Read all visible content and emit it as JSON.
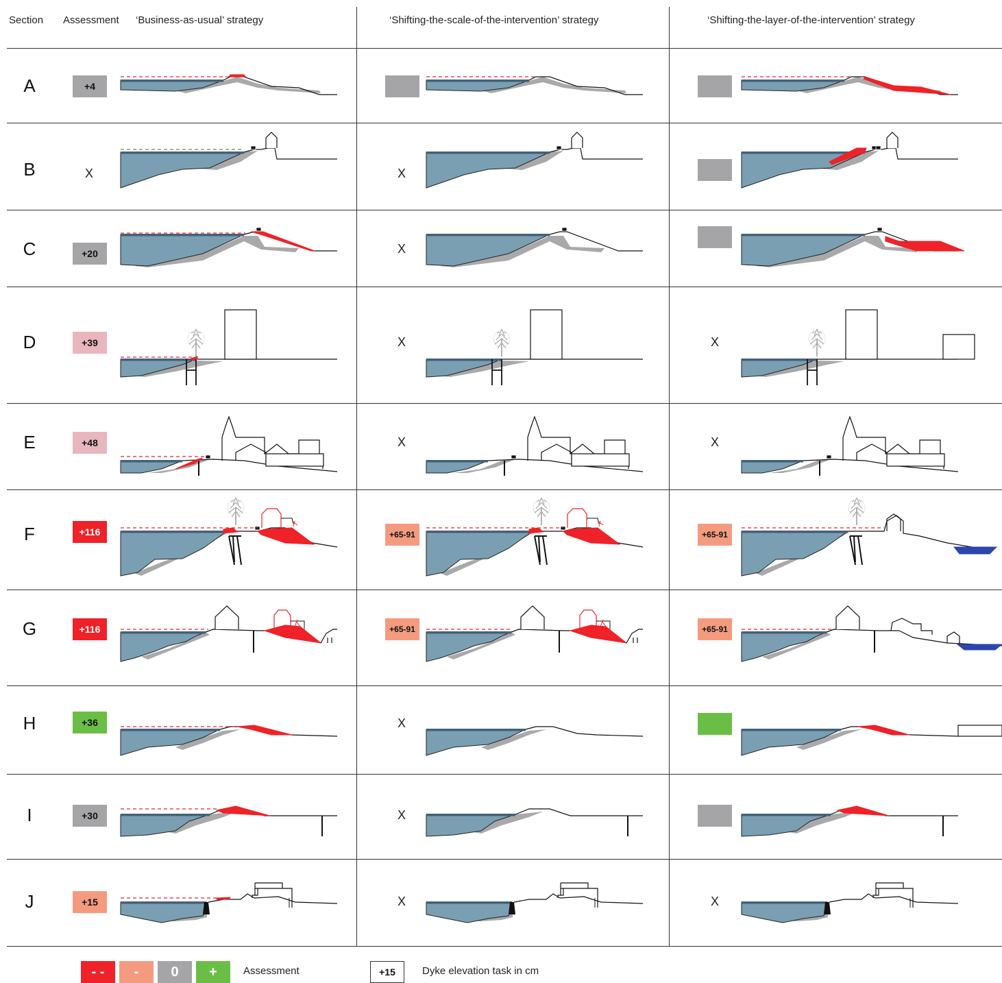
{
  "headers": {
    "section": "Section",
    "assessment": "Assessment",
    "business_as_usual": "‘Business-as-usual’ strategy",
    "shifting_scale": "‘Shifting-the-scale-of-the-intervention’ strategy",
    "shifting_layer": "‘Shifting-the-layer-of-the-intervention’ strategy"
  },
  "colors": {
    "strongly_negative": "#ee2228",
    "negative": "#f49b7f",
    "mildly_negative": "#e9b6bd",
    "neutral": "#a5a5a7",
    "positive": "#6bbe45",
    "water": "#7a9fb2",
    "water_surface": "#43617a",
    "dyke_earth": "#a9a9ab",
    "intervention": "#ee2228",
    "retention": "#2b46ae"
  },
  "rows": [
    {
      "section": "A",
      "cells": [
        {
          "mark": "badge",
          "label": "+4",
          "color": "neutral"
        },
        {
          "mark": "badge",
          "label": "",
          "color": "neutral"
        },
        {
          "mark": "badge",
          "label": "",
          "color": "neutral"
        }
      ]
    },
    {
      "section": "B",
      "cells": [
        {
          "mark": "x",
          "label": "X"
        },
        {
          "mark": "x",
          "label": "X"
        },
        {
          "mark": "badge",
          "label": "",
          "color": "neutral"
        }
      ]
    },
    {
      "section": "C",
      "cells": [
        {
          "mark": "badge",
          "label": "+20",
          "color": "neutral"
        },
        {
          "mark": "x",
          "label": "X"
        },
        {
          "mark": "badge",
          "label": "",
          "color": "neutral"
        }
      ]
    },
    {
      "section": "D",
      "cells": [
        {
          "mark": "badge",
          "label": "+39",
          "color": "mildly_negative"
        },
        {
          "mark": "x",
          "label": "X"
        },
        {
          "mark": "x",
          "label": "X"
        }
      ]
    },
    {
      "section": "E",
      "cells": [
        {
          "mark": "badge",
          "label": "+48",
          "color": "mildly_negative"
        },
        {
          "mark": "x",
          "label": "X"
        },
        {
          "mark": "x",
          "label": "X"
        }
      ]
    },
    {
      "section": "F",
      "cells": [
        {
          "mark": "badge",
          "label": "+116",
          "color": "strongly_negative"
        },
        {
          "mark": "badge",
          "label": "+65-91",
          "color": "negative"
        },
        {
          "mark": "badge",
          "label": "+65-91",
          "color": "negative"
        }
      ]
    },
    {
      "section": "G",
      "cells": [
        {
          "mark": "badge",
          "label": "+116",
          "color": "strongly_negative"
        },
        {
          "mark": "badge",
          "label": "+65-91",
          "color": "negative"
        },
        {
          "mark": "badge",
          "label": "+65-91",
          "color": "negative"
        }
      ]
    },
    {
      "section": "H",
      "cells": [
        {
          "mark": "badge",
          "label": "+36",
          "color": "positive"
        },
        {
          "mark": "x",
          "label": "X"
        },
        {
          "mark": "badge",
          "label": "",
          "color": "positive"
        }
      ]
    },
    {
      "section": "I",
      "cells": [
        {
          "mark": "badge",
          "label": "+30",
          "color": "neutral"
        },
        {
          "mark": "x",
          "label": "X"
        },
        {
          "mark": "badge",
          "label": "",
          "color": "neutral"
        }
      ]
    },
    {
      "section": "J",
      "cells": [
        {
          "mark": "badge",
          "label": "+15",
          "color": "negative"
        },
        {
          "mark": "x",
          "label": "X"
        },
        {
          "mark": "x",
          "label": "X"
        }
      ]
    }
  ],
  "legend": {
    "assessment": {
      "items": [
        {
          "symbol": "- -",
          "color": "strongly_negative"
        },
        {
          "symbol": "-",
          "color": "negative"
        },
        {
          "symbol": "0",
          "color": "neutral"
        },
        {
          "symbol": "+",
          "color": "positive"
        }
      ],
      "label": "Assessment"
    },
    "elevation": {
      "sample": "+15",
      "label": "Dyke elevation task in cm"
    }
  }
}
